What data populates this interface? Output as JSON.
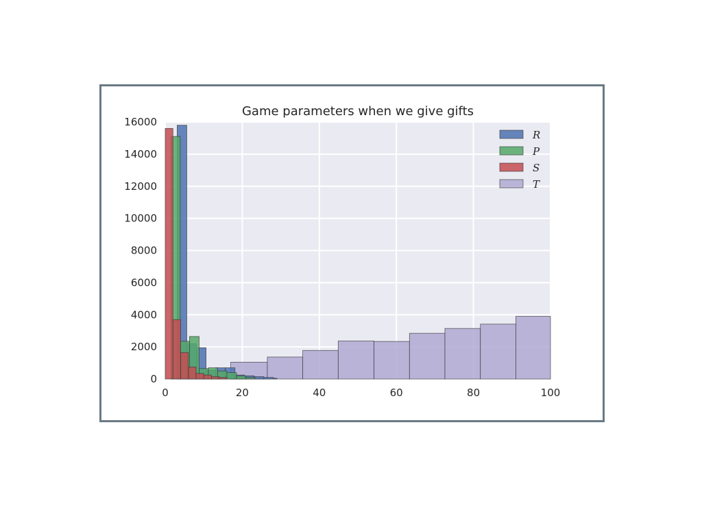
{
  "chart_data": {
    "type": "bar",
    "title": "Game parameters when we give gifts",
    "xlabel": "",
    "ylabel": "",
    "xlim": [
      0,
      100
    ],
    "ylim": [
      0,
      16000
    ],
    "xticks": [
      "0",
      "20",
      "40",
      "60",
      "80",
      "100"
    ],
    "yticks": [
      "0",
      "2000",
      "4000",
      "6000",
      "8000",
      "10000",
      "12000",
      "14000",
      "16000"
    ],
    "grid": true,
    "legend_position": "top-right",
    "series": [
      {
        "name": "T",
        "color": "#b1a9d3",
        "bins": [
          {
            "x0": 17.0,
            "x1": 26.5,
            "count": 1050
          },
          {
            "x0": 26.5,
            "x1": 35.7,
            "count": 1370
          },
          {
            "x0": 35.7,
            "x1": 44.9,
            "count": 1780
          },
          {
            "x0": 44.9,
            "x1": 54.2,
            "count": 2370
          },
          {
            "x0": 54.2,
            "x1": 63.4,
            "count": 2340
          },
          {
            "x0": 63.4,
            "x1": 72.6,
            "count": 2850
          },
          {
            "x0": 72.6,
            "x1": 81.8,
            "count": 3150
          },
          {
            "x0": 81.8,
            "x1": 91.0,
            "count": 3420
          },
          {
            "x0": 91.0,
            "x1": 100.0,
            "count": 3900
          }
        ]
      },
      {
        "name": "R",
        "color": "#4c72b0",
        "bins": [
          {
            "x0": 3.1,
            "x1": 5.6,
            "count": 15800
          },
          {
            "x0": 5.6,
            "x1": 8.1,
            "count": 2200
          },
          {
            "x0": 8.1,
            "x1": 10.6,
            "count": 1950
          },
          {
            "x0": 10.6,
            "x1": 13.1,
            "count": 550
          },
          {
            "x0": 13.1,
            "x1": 15.6,
            "count": 700
          },
          {
            "x0": 15.6,
            "x1": 18.1,
            "count": 700
          },
          {
            "x0": 18.1,
            "x1": 20.6,
            "count": 250
          },
          {
            "x0": 20.6,
            "x1": 23.1,
            "count": 200
          },
          {
            "x0": 23.1,
            "x1": 25.6,
            "count": 150
          },
          {
            "x0": 25.6,
            "x1": 28.1,
            "count": 100
          },
          {
            "x0": 28.1,
            "x1": 29.0,
            "count": 50
          }
        ]
      },
      {
        "name": "P",
        "color": "#55a868",
        "bins": [
          {
            "x0": 1.5,
            "x1": 3.9,
            "count": 15100
          },
          {
            "x0": 3.9,
            "x1": 6.3,
            "count": 2350
          },
          {
            "x0": 6.3,
            "x1": 8.8,
            "count": 2650
          },
          {
            "x0": 8.8,
            "x1": 11.2,
            "count": 650
          },
          {
            "x0": 11.2,
            "x1": 13.6,
            "count": 700
          },
          {
            "x0": 13.6,
            "x1": 16.0,
            "count": 500
          },
          {
            "x0": 16.0,
            "x1": 18.5,
            "count": 400
          },
          {
            "x0": 18.5,
            "x1": 20.9,
            "count": 200
          },
          {
            "x0": 20.9,
            "x1": 23.3,
            "count": 100
          }
        ]
      },
      {
        "name": "S",
        "color": "#c44e52",
        "bins": [
          {
            "x0": 0.0,
            "x1": 2.0,
            "count": 15600
          },
          {
            "x0": 2.0,
            "x1": 4.0,
            "count": 3700
          },
          {
            "x0": 4.0,
            "x1": 6.0,
            "count": 1650
          },
          {
            "x0": 6.0,
            "x1": 8.0,
            "count": 750
          },
          {
            "x0": 8.0,
            "x1": 10.0,
            "count": 350
          },
          {
            "x0": 10.0,
            "x1": 12.0,
            "count": 250
          },
          {
            "x0": 12.0,
            "x1": 14.0,
            "count": 150
          },
          {
            "x0": 14.0,
            "x1": 16.0,
            "count": 100
          }
        ]
      }
    ],
    "legend": [
      {
        "name": "R",
        "color": "#4c72b0"
      },
      {
        "name": "P",
        "color": "#55a868"
      },
      {
        "name": "S",
        "color": "#c44e52"
      },
      {
        "name": "T",
        "color": "#b1a9d3"
      }
    ]
  },
  "colors": {
    "plot_background": "#eaeaf2",
    "grid": "#ffffff",
    "frame_border": "#687a83"
  }
}
